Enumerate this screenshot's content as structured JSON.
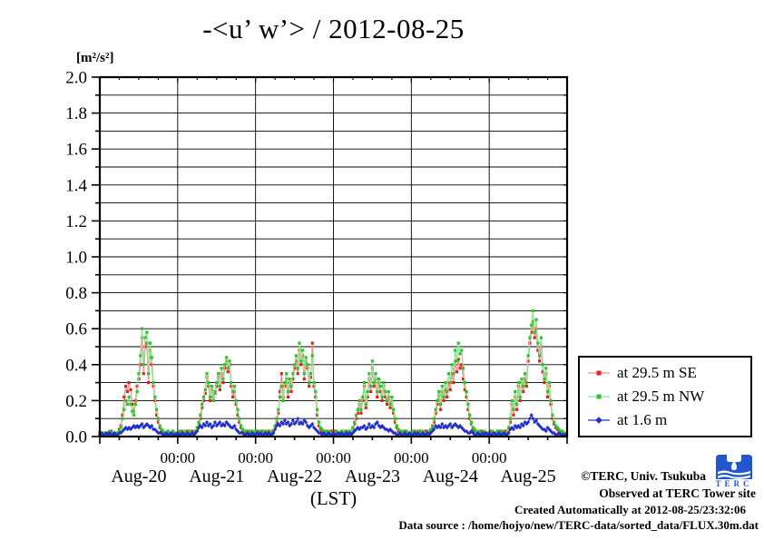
{
  "title": "-<u’ w’> / 2012-08-25",
  "y_axis": {
    "unit_label": "[m²/s²]",
    "tick_labels": [
      "0.0",
      "0.2",
      "0.4",
      "0.6",
      "0.8",
      "1.0",
      "1.2",
      "1.4",
      "1.6",
      "1.8",
      "2.0"
    ]
  },
  "x_axis": {
    "boundary_label": "00:00",
    "day_labels": [
      "Aug-20",
      "Aug-21",
      "Aug-22",
      "Aug-23",
      "Aug-24",
      "Aug-25"
    ],
    "axis_label": "(LST)"
  },
  "legend": {
    "items": [
      {
        "label": "at 29.5 m SE",
        "marker": "square",
        "marker_color": "#e42020",
        "line_color": "#f09090"
      },
      {
        "label": "at 29.5 m NW",
        "marker": "square",
        "marker_color": "#28c828",
        "line_color": "#93e093"
      },
      {
        "label": "at 1.6 m",
        "marker": "diamond",
        "marker_color": "#2230cc",
        "line_color": "#2230cc"
      }
    ]
  },
  "footer": {
    "copyright": "©TERC, Univ. Tsukuba",
    "observed": "Observed at TERC Tower site",
    "created": "Created Automatically at 2012-08-25/23:32:06",
    "data_source": "Data source : /home/hojyo/new/TERC-data/sorted_data/FLUX.30m.dat",
    "logo_text": "TERC"
  },
  "chart_data": {
    "type": "line",
    "title": "-<u’ w’> / 2012-08-25",
    "xlabel": "(LST)",
    "ylabel": "[m²/s²]",
    "ylim": [
      0.0,
      2.0
    ],
    "grid": true,
    "legend_position": "right",
    "x_days": [
      "Aug-20",
      "Aug-21",
      "Aug-22",
      "Aug-23",
      "Aug-24",
      "Aug-25"
    ],
    "sample_interval_hours": 0.5,
    "series": [
      {
        "name": "at 29.5 m SE",
        "marker": "square",
        "marker_color": "#e42020",
        "line_color": "#f09090",
        "values": [
          0.02,
          0.02,
          0.01,
          0.02,
          0.02,
          0.01,
          0.02,
          0.03,
          0.02,
          0.02,
          0.02,
          0.01,
          0.04,
          0.06,
          0.12,
          0.22,
          0.28,
          0.25,
          0.3,
          0.26,
          0.18,
          0.14,
          0.2,
          0.28,
          0.32,
          0.4,
          0.55,
          0.35,
          0.5,
          0.52,
          0.3,
          0.48,
          0.4,
          0.28,
          0.2,
          0.12,
          0.08,
          0.05,
          0.03,
          0.03,
          0.02,
          0.02,
          0.03,
          0.02,
          0.02,
          0.03,
          0.02,
          0.02,
          0.02,
          0.02,
          0.03,
          0.02,
          0.02,
          0.02,
          0.03,
          0.02,
          0.02,
          0.03,
          0.02,
          0.02,
          0.04,
          0.07,
          0.1,
          0.16,
          0.2,
          0.24,
          0.33,
          0.28,
          0.2,
          0.26,
          0.22,
          0.24,
          0.28,
          0.33,
          0.26,
          0.35,
          0.3,
          0.38,
          0.42,
          0.36,
          0.4,
          0.28,
          0.22,
          0.25,
          0.18,
          0.12,
          0.08,
          0.05,
          0.03,
          0.03,
          0.02,
          0.03,
          0.02,
          0.03,
          0.02,
          0.02,
          0.02,
          0.03,
          0.02,
          0.02,
          0.03,
          0.02,
          0.02,
          0.02,
          0.03,
          0.02,
          0.02,
          0.03,
          0.05,
          0.08,
          0.13,
          0.25,
          0.35,
          0.22,
          0.28,
          0.32,
          0.22,
          0.3,
          0.25,
          0.32,
          0.38,
          0.42,
          0.35,
          0.48,
          0.4,
          0.45,
          0.32,
          0.42,
          0.38,
          0.28,
          0.33,
          0.52,
          0.28,
          0.22,
          0.12,
          0.06,
          0.04,
          0.03,
          0.03,
          0.02,
          0.03,
          0.02,
          0.02,
          0.03,
          0.02,
          0.03,
          0.02,
          0.02,
          0.02,
          0.03,
          0.02,
          0.02,
          0.03,
          0.02,
          0.02,
          0.02,
          0.04,
          0.07,
          0.1,
          0.13,
          0.18,
          0.13,
          0.2,
          0.28,
          0.16,
          0.22,
          0.32,
          0.25,
          0.38,
          0.28,
          0.32,
          0.22,
          0.3,
          0.25,
          0.2,
          0.28,
          0.22,
          0.18,
          0.22,
          0.16,
          0.2,
          0.13,
          0.08,
          0.05,
          0.03,
          0.03,
          0.02,
          0.02,
          0.03,
          0.02,
          0.02,
          0.02,
          0.02,
          0.02,
          0.03,
          0.02,
          0.02,
          0.03,
          0.02,
          0.02,
          0.02,
          0.03,
          0.02,
          0.02,
          0.03,
          0.05,
          0.08,
          0.13,
          0.18,
          0.23,
          0.15,
          0.25,
          0.2,
          0.26,
          0.22,
          0.3,
          0.26,
          0.35,
          0.3,
          0.42,
          0.36,
          0.43,
          0.38,
          0.4,
          0.32,
          0.26,
          0.22,
          0.15,
          0.1,
          0.07,
          0.04,
          0.03,
          0.03,
          0.02,
          0.02,
          0.03,
          0.02,
          0.02,
          0.02,
          0.02,
          0.02,
          0.03,
          0.02,
          0.02,
          0.02,
          0.03,
          0.02,
          0.03,
          0.02,
          0.02,
          0.03,
          0.02,
          0.04,
          0.08,
          0.18,
          0.12,
          0.22,
          0.15,
          0.28,
          0.2,
          0.3,
          0.25,
          0.32,
          0.28,
          0.42,
          0.52,
          0.58,
          0.64,
          0.55,
          0.6,
          0.48,
          0.42,
          0.5,
          0.36,
          0.3,
          0.35,
          0.22,
          0.28,
          0.18,
          0.1,
          0.07,
          0.05,
          0.04,
          0.03,
          0.03,
          0.02,
          0.02,
          0.02
        ]
      },
      {
        "name": "at 29.5 m NW",
        "marker": "square",
        "marker_color": "#28c828",
        "line_color": "#93e093",
        "values": [
          0.02,
          0.01,
          0.02,
          0.02,
          0.01,
          0.02,
          0.03,
          0.02,
          0.02,
          0.01,
          0.02,
          0.02,
          0.03,
          0.05,
          0.1,
          0.15,
          0.2,
          0.18,
          0.22,
          0.18,
          0.14,
          0.12,
          0.18,
          0.25,
          0.35,
          0.45,
          0.6,
          0.4,
          0.55,
          0.58,
          0.35,
          0.52,
          0.44,
          0.3,
          0.22,
          0.15,
          0.1,
          0.06,
          0.04,
          0.03,
          0.02,
          0.02,
          0.03,
          0.02,
          0.02,
          0.03,
          0.02,
          0.02,
          0.02,
          0.03,
          0.02,
          0.02,
          0.03,
          0.02,
          0.02,
          0.03,
          0.02,
          0.02,
          0.02,
          0.03,
          0.05,
          0.08,
          0.12,
          0.18,
          0.22,
          0.26,
          0.35,
          0.3,
          0.22,
          0.28,
          0.2,
          0.25,
          0.3,
          0.35,
          0.28,
          0.38,
          0.32,
          0.4,
          0.44,
          0.38,
          0.42,
          0.3,
          0.25,
          0.28,
          0.2,
          0.15,
          0.1,
          0.06,
          0.04,
          0.03,
          0.03,
          0.02,
          0.03,
          0.02,
          0.03,
          0.02,
          0.03,
          0.02,
          0.02,
          0.03,
          0.02,
          0.02,
          0.03,
          0.02,
          0.02,
          0.03,
          0.02,
          0.02,
          0.06,
          0.1,
          0.15,
          0.22,
          0.28,
          0.2,
          0.3,
          0.35,
          0.25,
          0.32,
          0.28,
          0.35,
          0.4,
          0.45,
          0.38,
          0.52,
          0.42,
          0.48,
          0.35,
          0.44,
          0.4,
          0.3,
          0.35,
          0.45,
          0.3,
          0.25,
          0.15,
          0.08,
          0.05,
          0.04,
          0.03,
          0.03,
          0.02,
          0.03,
          0.02,
          0.02,
          0.02,
          0.02,
          0.03,
          0.02,
          0.02,
          0.03,
          0.02,
          0.03,
          0.02,
          0.02,
          0.03,
          0.02,
          0.05,
          0.08,
          0.12,
          0.15,
          0.2,
          0.15,
          0.22,
          0.3,
          0.18,
          0.25,
          0.35,
          0.28,
          0.42,
          0.3,
          0.35,
          0.25,
          0.32,
          0.28,
          0.22,
          0.3,
          0.25,
          0.2,
          0.25,
          0.18,
          0.22,
          0.15,
          0.1,
          0.06,
          0.04,
          0.03,
          0.03,
          0.02,
          0.02,
          0.03,
          0.02,
          0.02,
          0.02,
          0.03,
          0.02,
          0.02,
          0.03,
          0.02,
          0.02,
          0.03,
          0.02,
          0.02,
          0.02,
          0.03,
          0.04,
          0.06,
          0.1,
          0.15,
          0.2,
          0.25,
          0.18,
          0.28,
          0.22,
          0.3,
          0.25,
          0.35,
          0.3,
          0.4,
          0.35,
          0.48,
          0.42,
          0.52,
          0.46,
          0.48,
          0.38,
          0.3,
          0.25,
          0.18,
          0.12,
          0.08,
          0.05,
          0.04,
          0.03,
          0.02,
          0.03,
          0.02,
          0.02,
          0.03,
          0.02,
          0.02,
          0.02,
          0.02,
          0.03,
          0.02,
          0.02,
          0.03,
          0.02,
          0.02,
          0.03,
          0.02,
          0.02,
          0.02,
          0.05,
          0.1,
          0.2,
          0.15,
          0.25,
          0.18,
          0.3,
          0.22,
          0.32,
          0.28,
          0.35,
          0.3,
          0.45,
          0.55,
          0.62,
          0.7,
          0.58,
          0.65,
          0.52,
          0.45,
          0.55,
          0.4,
          0.32,
          0.38,
          0.25,
          0.3,
          0.2,
          0.12,
          0.08,
          0.06,
          0.05,
          0.04,
          0.03,
          0.03,
          0.02,
          0.02
        ]
      },
      {
        "name": "at 1.6 m",
        "marker": "diamond",
        "marker_color": "#2230cc",
        "line_color": "#2230cc",
        "values": [
          0.01,
          0.02,
          0.01,
          0.01,
          0.02,
          0.01,
          0.02,
          0.01,
          0.01,
          0.02,
          0.01,
          0.01,
          0.02,
          0.02,
          0.03,
          0.04,
          0.05,
          0.04,
          0.05,
          0.04,
          0.05,
          0.06,
          0.05,
          0.06,
          0.05,
          0.06,
          0.07,
          0.05,
          0.06,
          0.07,
          0.06,
          0.05,
          0.06,
          0.04,
          0.04,
          0.03,
          0.02,
          0.02,
          0.02,
          0.01,
          0.01,
          0.02,
          0.01,
          0.01,
          0.02,
          0.01,
          0.01,
          0.01,
          0.02,
          0.01,
          0.01,
          0.02,
          0.01,
          0.01,
          0.02,
          0.01,
          0.01,
          0.02,
          0.01,
          0.02,
          0.03,
          0.05,
          0.06,
          0.05,
          0.07,
          0.06,
          0.08,
          0.06,
          0.07,
          0.05,
          0.06,
          0.08,
          0.06,
          0.07,
          0.08,
          0.06,
          0.07,
          0.06,
          0.08,
          0.07,
          0.06,
          0.05,
          0.05,
          0.06,
          0.04,
          0.03,
          0.02,
          0.02,
          0.02,
          0.01,
          0.01,
          0.02,
          0.01,
          0.01,
          0.02,
          0.01,
          0.01,
          0.02,
          0.01,
          0.02,
          0.01,
          0.01,
          0.02,
          0.01,
          0.02,
          0.01,
          0.01,
          0.02,
          0.04,
          0.06,
          0.07,
          0.06,
          0.08,
          0.07,
          0.09,
          0.07,
          0.08,
          0.06,
          0.07,
          0.09,
          0.07,
          0.08,
          0.1,
          0.07,
          0.08,
          0.07,
          0.09,
          0.08,
          0.06,
          0.05,
          0.06,
          0.07,
          0.05,
          0.04,
          0.03,
          0.02,
          0.02,
          0.01,
          0.02,
          0.01,
          0.01,
          0.02,
          0.01,
          0.01,
          0.02,
          0.01,
          0.01,
          0.02,
          0.01,
          0.02,
          0.01,
          0.01,
          0.02,
          0.01,
          0.02,
          0.01,
          0.02,
          0.03,
          0.04,
          0.05,
          0.04,
          0.05,
          0.05,
          0.06,
          0.04,
          0.05,
          0.07,
          0.05,
          0.06,
          0.05,
          0.07,
          0.08,
          0.06,
          0.05,
          0.06,
          0.05,
          0.04,
          0.04,
          0.03,
          0.04,
          0.03,
          0.02,
          0.02,
          0.01,
          0.01,
          0.02,
          0.01,
          0.01,
          0.02,
          0.01,
          0.01,
          0.02,
          0.01,
          0.01,
          0.02,
          0.01,
          0.02,
          0.01,
          0.01,
          0.02,
          0.01,
          0.01,
          0.02,
          0.01,
          0.02,
          0.03,
          0.04,
          0.06,
          0.05,
          0.06,
          0.05,
          0.07,
          0.05,
          0.06,
          0.05,
          0.06,
          0.07,
          0.05,
          0.06,
          0.07,
          0.06,
          0.05,
          0.06,
          0.05,
          0.04,
          0.03,
          0.03,
          0.02,
          0.02,
          0.03,
          0.02,
          0.01,
          0.01,
          0.02,
          0.01,
          0.01,
          0.02,
          0.01,
          0.02,
          0.01,
          0.02,
          0.01,
          0.01,
          0.02,
          0.01,
          0.01,
          0.02,
          0.01,
          0.01,
          0.02,
          0.01,
          0.01,
          0.02,
          0.04,
          0.05,
          0.04,
          0.06,
          0.05,
          0.06,
          0.05,
          0.07,
          0.06,
          0.08,
          0.07,
          0.08,
          0.1,
          0.12,
          0.1,
          0.08,
          0.09,
          0.07,
          0.06,
          0.05,
          0.04,
          0.04,
          0.03,
          0.05,
          0.04,
          0.03,
          0.02,
          0.02,
          0.01,
          0.01,
          0.02,
          0.01,
          0.01,
          0.01,
          0.01
        ]
      }
    ]
  }
}
